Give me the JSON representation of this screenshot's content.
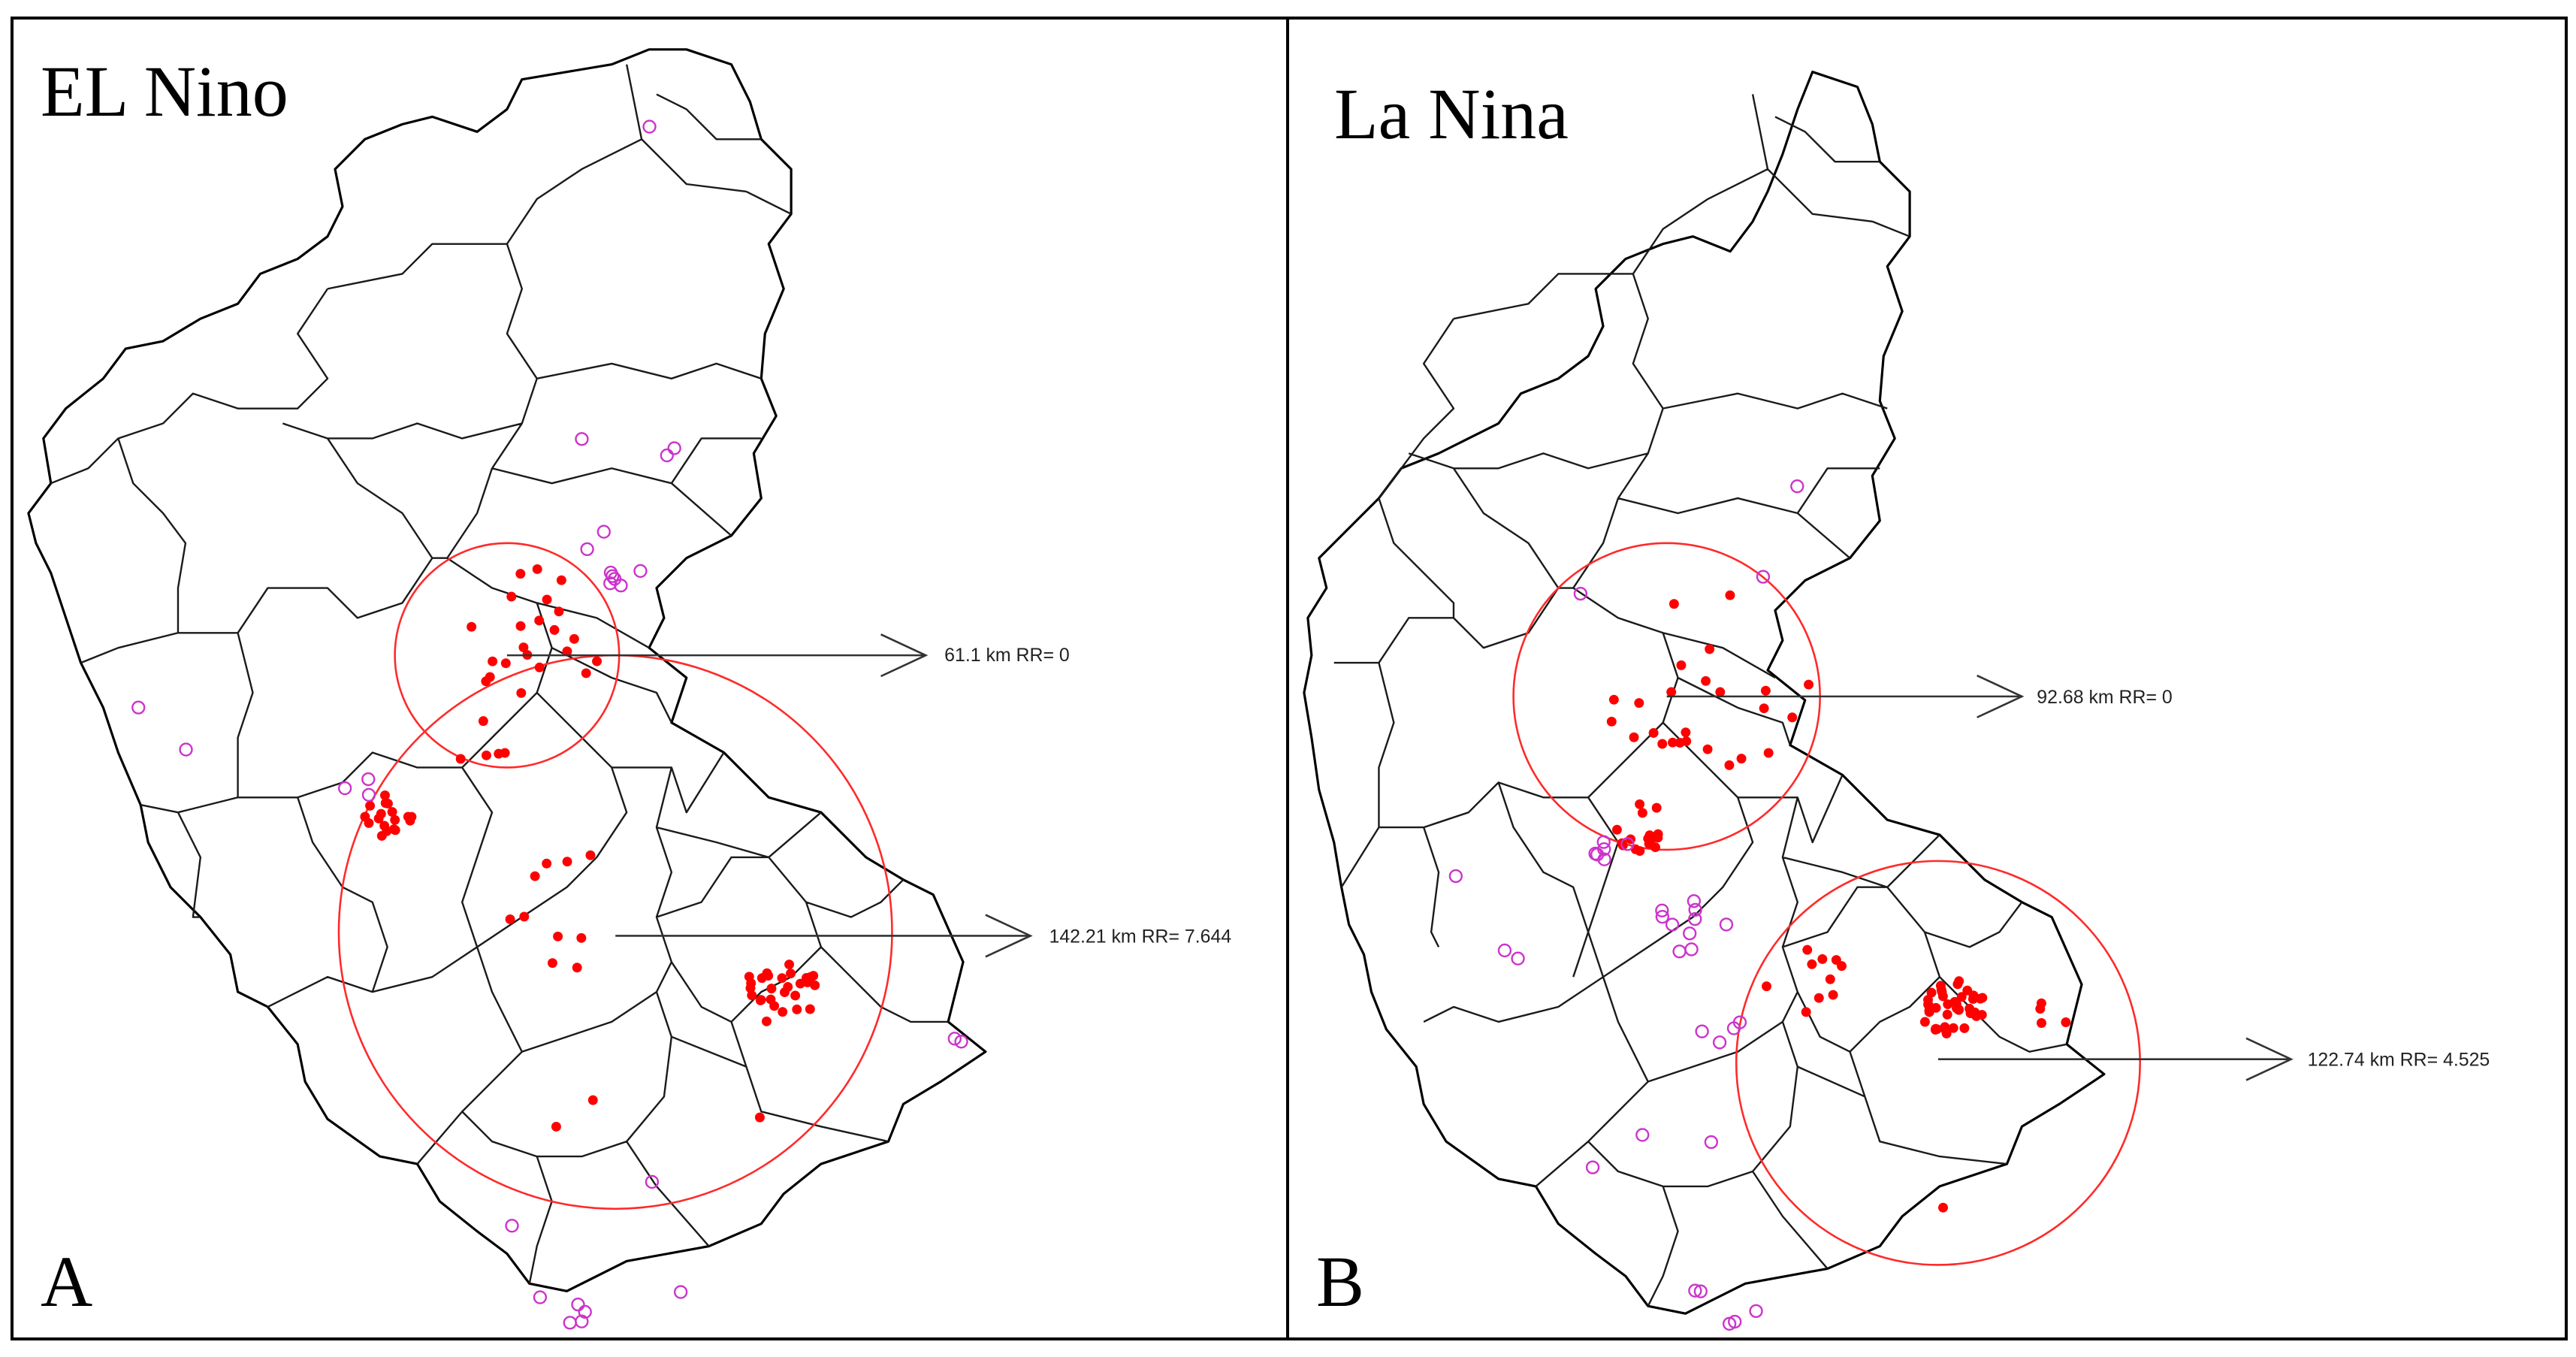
{
  "panels": [
    {
      "id": "A",
      "title": "EL Nino",
      "letter": "A",
      "clusters": [
        {
          "label": "61.1 km RR= 0",
          "radius_km": 61.1,
          "relative_risk": 0
        },
        {
          "label": "142.21 km RR= 7.644",
          "radius_km": 142.21,
          "relative_risk": 7.644
        }
      ]
    },
    {
      "id": "B",
      "title": "La Nina",
      "letter": "B",
      "clusters": [
        {
          "label": "92.68 km RR= 0",
          "radius_km": 92.68,
          "relative_risk": 0
        },
        {
          "label": "122.74 km RR= 4.525",
          "radius_km": 122.74,
          "relative_risk": 4.525
        }
      ]
    }
  ],
  "colors": {
    "cluster_circle": "#ff2a2a",
    "case_point": "#ff0000",
    "non_case_point": "#cc33cc",
    "district_boundary": "#1a1a1a"
  },
  "legend_semantics": {
    "filled_red_dot": "case location",
    "hollow_magenta_circle": "non-case location"
  }
}
